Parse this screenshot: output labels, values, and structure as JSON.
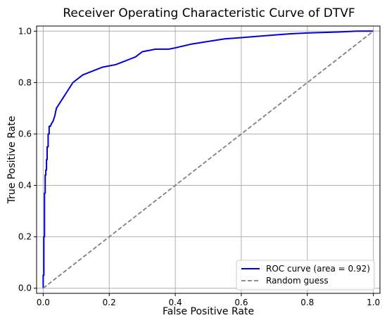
{
  "chart_data": {
    "type": "line",
    "title": "Receiver Operating Characteristic Curve of DTVF",
    "xlabel": "False Positive Rate",
    "ylabel": "True Positive Rate",
    "xlim": [
      -0.02,
      1.02
    ],
    "ylim": [
      -0.02,
      1.02
    ],
    "xticks": [
      0.0,
      0.2,
      0.4,
      0.6,
      0.8,
      1.0
    ],
    "yticks": [
      0.0,
      0.2,
      0.4,
      0.6,
      0.8,
      1.0
    ],
    "xtick_labels": [
      "0.0",
      "0.2",
      "0.4",
      "0.6",
      "0.8",
      "1.0"
    ],
    "ytick_labels": [
      "0.0",
      "0.2",
      "0.4",
      "0.6",
      "0.8",
      "1.0"
    ],
    "grid": true,
    "legend_position": "bottom-right",
    "series": [
      {
        "name": "ROC curve (area = 0.92)",
        "color": "#0000dd",
        "style": "solid",
        "x": [
          0.0,
          0.0,
          0.002,
          0.002,
          0.004,
          0.004,
          0.006,
          0.006,
          0.008,
          0.008,
          0.01,
          0.01,
          0.012,
          0.012,
          0.015,
          0.015,
          0.018,
          0.018,
          0.022,
          0.025,
          0.03,
          0.035,
          0.04,
          0.045,
          0.05,
          0.055,
          0.06,
          0.07,
          0.08,
          0.09,
          0.1,
          0.12,
          0.14,
          0.16,
          0.18,
          0.2,
          0.22,
          0.24,
          0.26,
          0.28,
          0.3,
          0.32,
          0.34,
          0.36,
          0.38,
          0.4,
          0.45,
          0.5,
          0.55,
          0.6,
          0.65,
          0.7,
          0.75,
          0.8,
          0.85,
          0.9,
          0.95,
          1.0
        ],
        "y": [
          0.0,
          0.05,
          0.05,
          0.2,
          0.2,
          0.37,
          0.37,
          0.44,
          0.44,
          0.46,
          0.46,
          0.5,
          0.5,
          0.55,
          0.55,
          0.6,
          0.6,
          0.63,
          0.63,
          0.64,
          0.65,
          0.67,
          0.7,
          0.71,
          0.72,
          0.73,
          0.74,
          0.76,
          0.78,
          0.8,
          0.81,
          0.83,
          0.84,
          0.85,
          0.86,
          0.865,
          0.87,
          0.88,
          0.89,
          0.9,
          0.92,
          0.925,
          0.93,
          0.93,
          0.93,
          0.935,
          0.95,
          0.96,
          0.97,
          0.975,
          0.98,
          0.985,
          0.99,
          0.993,
          0.995,
          0.997,
          1.0,
          1.0
        ]
      },
      {
        "name": "Random guess",
        "color": "#808080",
        "style": "dashed",
        "x": [
          0.0,
          1.0
        ],
        "y": [
          0.0,
          1.0
        ]
      }
    ]
  }
}
